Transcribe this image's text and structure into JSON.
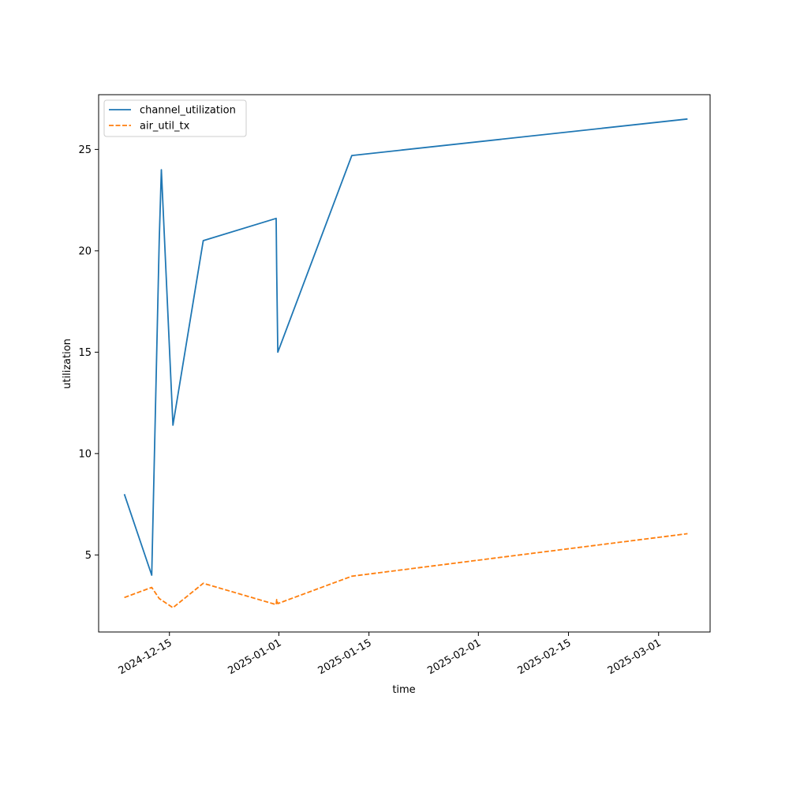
{
  "chart_data": {
    "type": "line",
    "xlabel": "time",
    "ylabel": "utilization",
    "x_type": "date",
    "xlim": [
      "2024-12-04",
      "2025-03-09"
    ],
    "ylim": [
      1.2,
      27.7
    ],
    "x_ticks": [
      "2024-12-15",
      "2025-01-01",
      "2025-01-15",
      "2025-02-01",
      "2025-02-15",
      "2025-03-01"
    ],
    "y_ticks": [
      5,
      10,
      15,
      20,
      25
    ],
    "grid": false,
    "legend_position": "upper-left",
    "series": [
      {
        "name": "channel_utilization",
        "color": "#1f77b4",
        "style": "solid",
        "points": [
          {
            "x": "2024-12-08T00:00",
            "y": 8.0
          },
          {
            "x": "2024-12-12T06:00",
            "y": 4.0
          },
          {
            "x": "2024-12-13T10:00",
            "y": 20.5
          },
          {
            "x": "2024-12-13T18:00",
            "y": 24.0
          },
          {
            "x": "2024-12-15T13:00",
            "y": 11.4
          },
          {
            "x": "2024-12-20T06:00",
            "y": 20.5
          },
          {
            "x": "2024-12-31T14:00",
            "y": 21.6
          },
          {
            "x": "2024-12-31T16:00",
            "y": 19.0
          },
          {
            "x": "2024-12-31T20:00",
            "y": 15.0
          },
          {
            "x": "2025-01-12T08:00",
            "y": 24.7
          },
          {
            "x": "2025-03-05T12:00",
            "y": 26.5
          }
        ]
      },
      {
        "name": "air_util_tx",
        "color": "#ff7f0e",
        "style": "dashed",
        "points": [
          {
            "x": "2024-12-08T00:00",
            "y": 2.9
          },
          {
            "x": "2024-12-12T06:00",
            "y": 3.4
          },
          {
            "x": "2024-12-13T10:00",
            "y": 2.85
          },
          {
            "x": "2024-12-15T13:00",
            "y": 2.4
          },
          {
            "x": "2024-12-20T06:00",
            "y": 3.6
          },
          {
            "x": "2024-12-31T14:00",
            "y": 2.55
          },
          {
            "x": "2024-12-31T16:00",
            "y": 2.8
          },
          {
            "x": "2024-12-31T20:00",
            "y": 2.6
          },
          {
            "x": "2025-01-12T08:00",
            "y": 3.95
          },
          {
            "x": "2025-03-05T12:00",
            "y": 6.05
          }
        ]
      }
    ]
  }
}
